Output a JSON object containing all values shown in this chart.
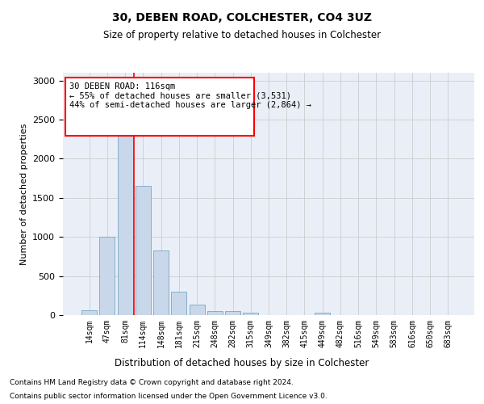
{
  "title1": "30, DEBEN ROAD, COLCHESTER, CO4 3UZ",
  "title2": "Size of property relative to detached houses in Colchester",
  "xlabel": "Distribution of detached houses by size in Colchester",
  "ylabel": "Number of detached properties",
  "categories": [
    "14sqm",
    "47sqm",
    "81sqm",
    "114sqm",
    "148sqm",
    "181sqm",
    "215sqm",
    "248sqm",
    "282sqm",
    "315sqm",
    "349sqm",
    "382sqm",
    "415sqm",
    "449sqm",
    "482sqm",
    "516sqm",
    "549sqm",
    "583sqm",
    "616sqm",
    "650sqm",
    "683sqm"
  ],
  "values": [
    60,
    1000,
    2450,
    1650,
    830,
    300,
    130,
    50,
    50,
    30,
    0,
    0,
    0,
    30,
    0,
    0,
    0,
    0,
    0,
    0,
    0
  ],
  "bar_color": "#c8d8ea",
  "bar_edge_color": "#6699bb",
  "grid_color": "#cccccc",
  "bg_color": "#eaeff7",
  "red_line_x": 2.5,
  "annotation_line1": "30 DEBEN ROAD: 116sqm",
  "annotation_line2": "← 55% of detached houses are smaller (3,531)",
  "annotation_line3": "44% of semi-detached houses are larger (2,864) →",
  "footnote1": "Contains HM Land Registry data © Crown copyright and database right 2024.",
  "footnote2": "Contains public sector information licensed under the Open Government Licence v3.0.",
  "ylim": [
    0,
    3100
  ],
  "yticks": [
    0,
    500,
    1000,
    1500,
    2000,
    2500,
    3000
  ]
}
